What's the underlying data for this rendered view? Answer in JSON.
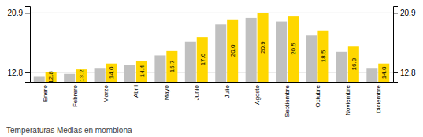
{
  "chart_data": {
    "type": "bar",
    "title": "Temperaturas Medias en momblona",
    "categories": [
      "Enero",
      "Febrero",
      "Marzo",
      "Abril",
      "Mayo",
      "Junio",
      "Julio",
      "Agosto",
      "Septiembre",
      "Octubre",
      "Noviembre",
      "Diciembre"
    ],
    "series": [
      {
        "color": "#C0C0C0",
        "values": [
          12.2,
          12.6,
          13.3,
          13.8,
          15.1,
          17.0,
          19.3,
          20.2,
          19.7,
          17.8,
          15.6,
          13.3
        ]
      },
      {
        "color": "#FFD700",
        "values": [
          12.8,
          13.2,
          14.0,
          14.4,
          15.7,
          17.6,
          20.0,
          20.9,
          20.5,
          18.5,
          16.3,
          14.0
        ],
        "data_labels": true,
        "value_labels": [
          "12.8",
          "13.2",
          "14.0",
          "14.4",
          "15.7",
          "17.6",
          "20.0",
          "20.9",
          "20.5",
          "18.5",
          "16.3",
          "14.0"
        ]
      }
    ],
    "ylim": [
      11.5,
      21.8
    ],
    "yticks": [
      12.8,
      20.9
    ],
    "y2lim": [
      11.5,
      21.8
    ],
    "y2ticks": [
      12.8,
      20.9
    ],
    "grid": true
  }
}
